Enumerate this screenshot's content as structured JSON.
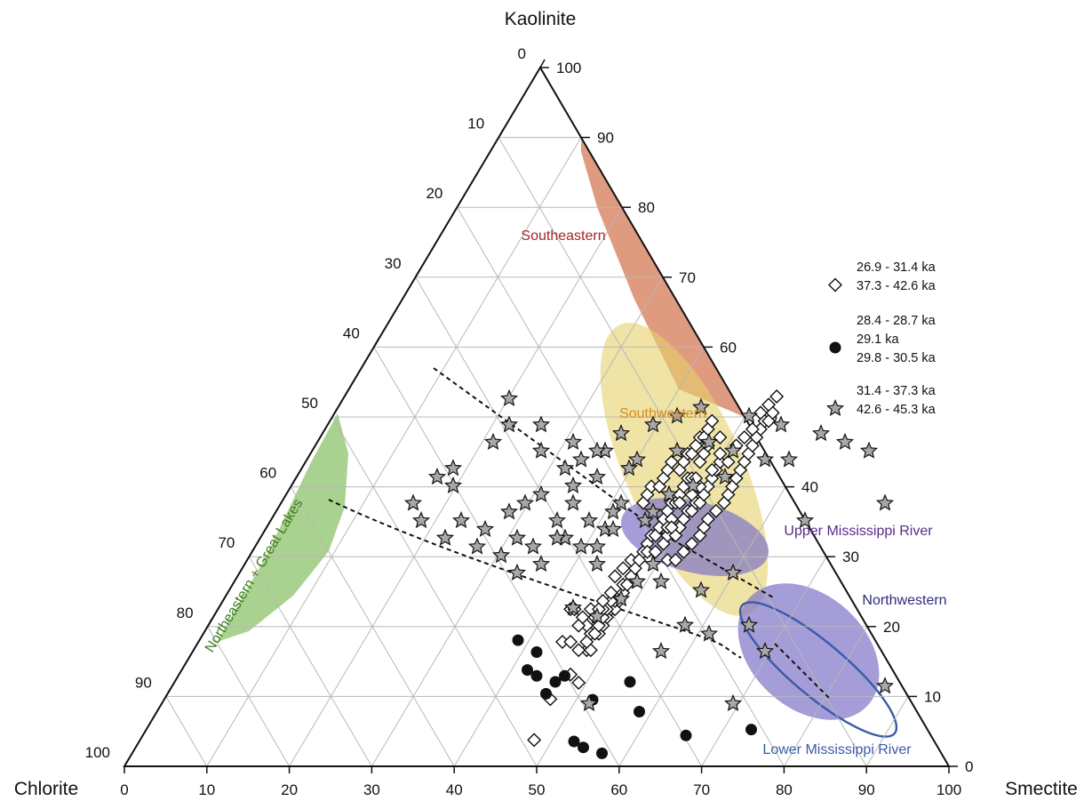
{
  "chart_data": {
    "type": "scatter",
    "subtype": "ternary",
    "apex_labels": {
      "top": "Kaolinite",
      "left": "Chlorite",
      "right": "Smectite"
    },
    "grid": true,
    "grid_step": 10,
    "ticks": {
      "bottom": [
        "0",
        "10",
        "20",
        "30",
        "40",
        "50",
        "60",
        "70",
        "80",
        "90",
        "100"
      ],
      "right": [
        "0",
        "10",
        "20",
        "30",
        "40",
        "50",
        "60",
        "70",
        "80",
        "90",
        "100"
      ],
      "left": [
        "0",
        "10",
        "20",
        "30",
        "40",
        "50",
        "60",
        "70",
        "80",
        "90",
        "100"
      ]
    },
    "colors": {
      "southeastern": "#d9896a",
      "southwestern": "#e6d06a",
      "northeastern": "#8cc26a",
      "mississippi": "#7e74c7",
      "lower_ring": "#3a5aa8",
      "label_southeastern": "#a3262a",
      "label_southwestern": "#d98c1a",
      "label_northeastern": "#3f7d1f",
      "label_upper": "#5b2a8c",
      "label_northwestern": "#2e2b7a",
      "label_lower": "#3a5aa8"
    },
    "regions": [
      {
        "key": "southeastern",
        "label": "Southeastern"
      },
      {
        "key": "southwestern",
        "label": "Southwestern"
      },
      {
        "key": "northeastern",
        "label": "Northeastern + Great Lakes"
      },
      {
        "key": "upper",
        "label": "Upper Mississippi River"
      },
      {
        "key": "northwestern",
        "label": "Northwestern"
      },
      {
        "key": "lower",
        "label": "Lower Mississippi River"
      }
    ],
    "legend_placement": "right",
    "series": [
      {
        "name": "26.9 - 31.4 ka / 37.3 - 42.6 ka",
        "legend_lines": [
          "26.9 - 31.4 ka",
          "37.3 - 42.6 ka"
        ],
        "marker": "diamond",
        "points": [
          [
            53,
            47
          ],
          [
            57,
            42
          ],
          [
            64,
            40
          ],
          [
            62,
            39
          ],
          [
            66,
            36
          ],
          [
            67,
            36
          ],
          [
            60,
            35
          ],
          [
            62,
            35
          ],
          [
            69,
            34
          ],
          [
            70,
            33
          ],
          [
            71,
            32
          ],
          [
            67,
            34
          ],
          [
            72,
            31
          ],
          [
            73,
            31
          ],
          [
            64,
            36
          ],
          [
            66,
            35
          ],
          [
            68,
            34
          ],
          [
            69,
            33
          ],
          [
            70,
            32
          ],
          [
            71,
            31
          ],
          [
            74,
            30
          ],
          [
            75,
            29
          ],
          [
            73,
            30
          ],
          [
            72,
            30
          ],
          [
            70,
            31
          ],
          [
            68,
            32
          ],
          [
            66,
            33
          ],
          [
            64,
            33
          ],
          [
            62,
            31
          ],
          [
            63,
            31
          ],
          [
            65,
            32
          ],
          [
            67,
            31
          ],
          [
            69,
            31
          ],
          [
            70,
            30
          ],
          [
            72,
            29
          ],
          [
            75,
            28
          ],
          [
            76,
            28
          ],
          [
            77,
            27
          ],
          [
            78,
            26
          ],
          [
            80,
            24
          ],
          [
            81,
            23
          ],
          [
            82,
            22
          ],
          [
            83,
            22
          ],
          [
            84,
            21
          ],
          [
            85,
            20
          ],
          [
            86,
            19
          ],
          [
            87,
            18
          ],
          [
            88,
            18
          ],
          [
            89,
            17
          ],
          [
            90,
            16
          ],
          [
            91,
            15
          ],
          [
            92,
            15
          ],
          [
            93,
            15
          ],
          [
            94,
            13
          ],
          [
            95,
            12
          ],
          [
            96,
            11
          ],
          [
            73,
            27
          ],
          [
            75,
            26
          ],
          [
            77,
            25
          ],
          [
            79,
            25
          ],
          [
            81,
            24
          ],
          [
            83,
            24
          ],
          [
            85,
            23
          ],
          [
            86,
            22
          ],
          [
            88,
            22
          ],
          [
            87,
            20
          ],
          [
            89,
            21
          ],
          [
            90,
            20
          ],
          [
            91,
            19
          ],
          [
            92,
            19
          ],
          [
            93,
            18
          ],
          [
            94,
            18
          ],
          [
            95,
            17
          ],
          [
            96,
            16
          ],
          [
            97,
            15
          ],
          [
            98,
            14
          ],
          [
            99,
            13
          ],
          [
            99,
            12
          ],
          [
            80,
            18
          ],
          [
            81,
            17
          ],
          [
            82,
            16
          ],
          [
            84,
            16
          ],
          [
            85,
            15
          ],
          [
            86,
            14
          ],
          [
            87,
            13
          ],
          [
            89,
            14
          ],
          [
            90,
            13
          ],
          [
            91,
            12
          ],
          [
            92,
            12
          ],
          [
            93,
            11
          ],
          [
            94,
            10
          ],
          [
            96,
            9
          ],
          [
            97,
            8
          ],
          [
            95,
            10
          ],
          [
            86,
            25
          ],
          [
            88,
            25
          ],
          [
            90,
            24
          ],
          [
            92,
            23
          ],
          [
            94,
            22
          ],
          [
            95,
            21
          ],
          [
            96,
            20
          ],
          [
            98,
            19
          ],
          [
            100,
            18
          ],
          [
            101,
            17
          ],
          [
            102,
            16
          ],
          [
            103,
            15
          ],
          [
            104,
            14
          ],
          [
            105,
            13
          ],
          [
            106,
            12
          ],
          [
            107,
            11
          ],
          [
            108,
            10
          ],
          [
            109,
            9
          ],
          [
            110,
            8
          ],
          [
            111,
            8
          ],
          [
            112,
            7
          ],
          [
            86,
            21
          ],
          [
            87,
            21
          ],
          [
            89,
            18
          ],
          [
            92,
            17
          ],
          [
            94,
            16
          ],
          [
            97,
            14
          ],
          [
            99,
            10
          ],
          [
            101,
            13
          ],
          [
            103,
            11
          ],
          [
            105,
            10
          ],
          [
            107,
            9
          ],
          [
            109,
            7
          ],
          [
            111,
            6
          ],
          [
            113,
            5
          ]
        ]
      },
      {
        "name": "28.4 - 28.7 ka / 29.1 ka / 29.8 - 30.5 ka",
        "legend_lines": [
          "28.4 - 28.7 ka",
          "29.1 ka",
          "29.8 - 30.5 ka"
        ],
        "marker": "circle",
        "points": [
          [
            14,
            10
          ],
          [
            43,
            29
          ],
          [
            27,
            18
          ],
          [
            20,
            19
          ],
          [
            15,
            15
          ],
          [
            10,
            13
          ],
          [
            7,
            9
          ],
          [
            4,
            5
          ],
          [
            2,
            3
          ],
          [
            3,
            8
          ],
          [
            4,
            9
          ],
          [
            6,
            10
          ],
          [
            5,
            12
          ],
          [
            8,
            20
          ],
          [
            9,
            21
          ],
          [
            11,
            22
          ],
          [
            22,
            24
          ],
          [
            34,
            35
          ]
        ]
      },
      {
        "name": "31.4 - 37.3 ka / 42.6 - 45.3 ka",
        "legend_lines": [
          "31.4 - 37.3 ka",
          "42.6 - 45.3 ka"
        ],
        "marker": "star",
        "points": [
          [
            49,
            57
          ],
          [
            34,
            56
          ],
          [
            31,
            56
          ],
          [
            26,
            57
          ],
          [
            40,
            43
          ],
          [
            22,
            43
          ],
          [
            59,
            41
          ],
          [
            31,
            37
          ],
          [
            44,
            37
          ],
          [
            37,
            35
          ],
          [
            34,
            34
          ],
          [
            42,
            34
          ],
          [
            23,
            33
          ],
          [
            20,
            32
          ],
          [
            26,
            31
          ],
          [
            36,
            30
          ],
          [
            28,
            29
          ],
          [
            31,
            29
          ],
          [
            40,
            28
          ],
          [
            23,
            27
          ],
          [
            30,
            27
          ],
          [
            49,
            22
          ],
          [
            59,
            20
          ],
          [
            13,
            28
          ],
          [
            16,
            27
          ],
          [
            21,
            25
          ],
          [
            23,
            25
          ],
          [
            19,
            24
          ],
          [
            24,
            23
          ],
          [
            29,
            22
          ],
          [
            30,
            21
          ],
          [
            26,
            20
          ],
          [
            32,
            19
          ],
          [
            35,
            18
          ],
          [
            39,
            17
          ],
          [
            47,
            15
          ],
          [
            57,
            14
          ],
          [
            33,
            14
          ],
          [
            9,
            23
          ],
          [
            6,
            22
          ],
          [
            12,
            21
          ],
          [
            14,
            20
          ],
          [
            16,
            19
          ],
          [
            20,
            18
          ],
          [
            23,
            17
          ],
          [
            27,
            16
          ],
          [
            28,
            15
          ],
          [
            16,
            14
          ],
          [
            10,
            13
          ],
          [
            12,
            11
          ],
          [
            5,
            18
          ],
          [
            5,
            16
          ],
          [
            3,
            17
          ],
          [
            1,
            22
          ],
          [
            0,
            20
          ],
          [
            4,
            24
          ],
          [
            8,
            25
          ],
          [
            11,
            26
          ],
          [
            15,
            25
          ],
          [
            18,
            24
          ],
          [
            22,
            22
          ],
          [
            25,
            21
          ],
          [
            20,
            20
          ],
          [
            44,
            15
          ],
          [
            40,
            14
          ],
          [
            37,
            13
          ],
          [
            12,
            8
          ],
          [
            16,
            11
          ],
          [
            20,
            13
          ],
          [
            24,
            14
          ],
          [
            26,
            12
          ],
          [
            30,
            11
          ],
          [
            33,
            10
          ],
          [
            36,
            9
          ],
          [
            42,
            10
          ],
          [
            46,
            11
          ],
          [
            51,
            12
          ],
          [
            54,
            13
          ],
          [
            13,
            24
          ],
          [
            18,
            22
          ],
          [
            25,
            23
          ],
          [
            19,
            16
          ],
          [
            21,
            15
          ],
          [
            23,
            14
          ]
        ]
      }
    ]
  }
}
